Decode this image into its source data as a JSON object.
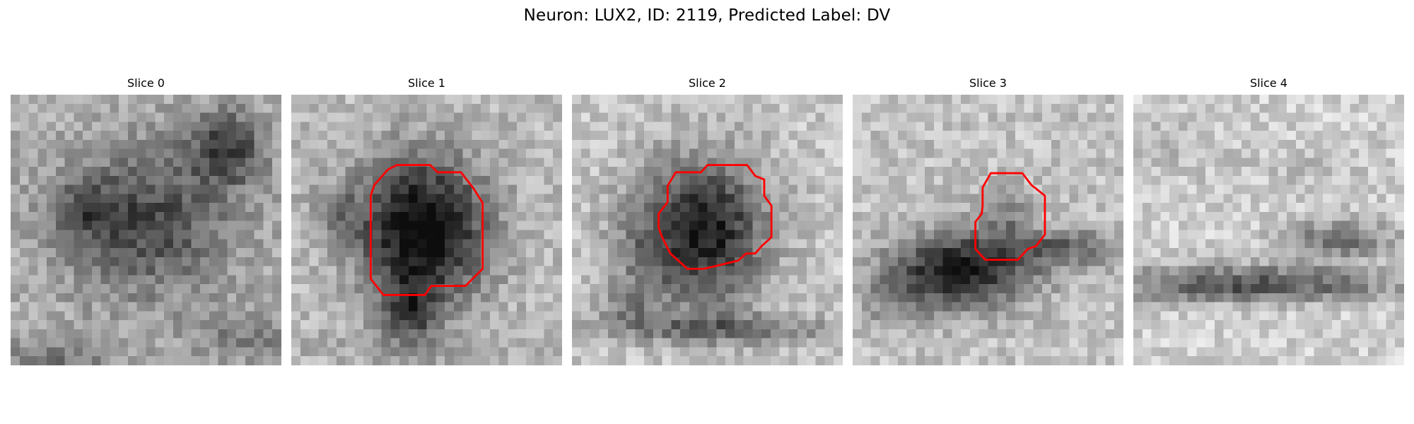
{
  "figure": {
    "title": "Neuron: LUX2, ID: 2119, Predicted Label: DV"
  },
  "style": {
    "contour_color": "#ff0000"
  },
  "panels": [
    {
      "title": "Slice 0",
      "has_contour": false
    },
    {
      "title": "Slice 1",
      "has_contour": true
    },
    {
      "title": "Slice 2",
      "has_contour": true
    },
    {
      "title": "Slice 3",
      "has_contour": true
    },
    {
      "title": "Slice 4",
      "has_contour": false
    }
  ]
}
